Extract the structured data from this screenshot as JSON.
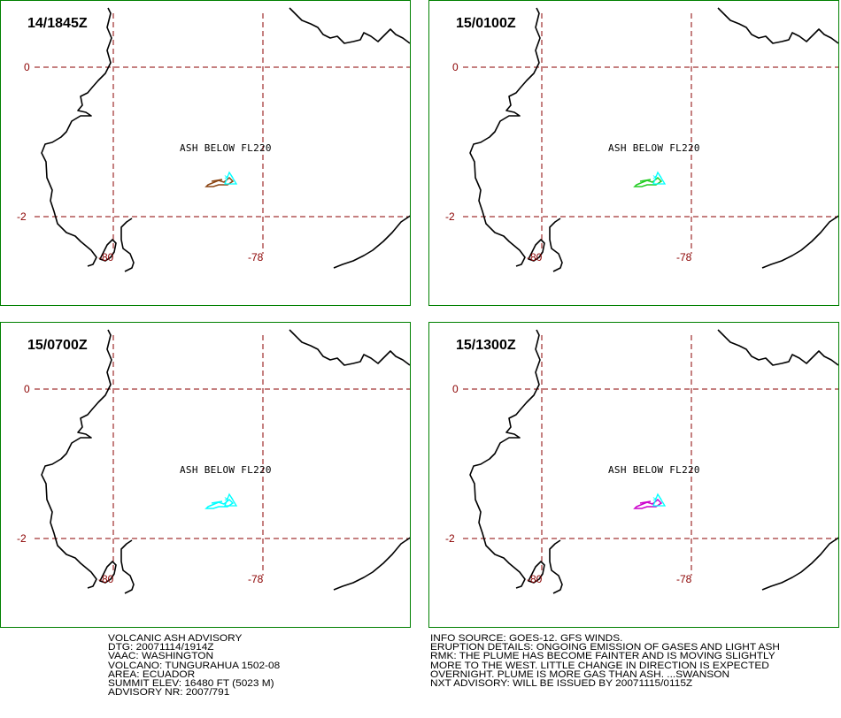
{
  "panels": [
    {
      "time": "14/1845Z",
      "plume_color": "#8b4513",
      "vent_color": "#00ffff"
    },
    {
      "time": "15/0100Z",
      "plume_color": "#22cc22",
      "vent_color": "#00ffff"
    },
    {
      "time": "15/0700Z",
      "plume_color": "#00ffff",
      "vent_color": "#00ffff"
    },
    {
      "time": "15/1300Z",
      "plume_color": "#cc00cc",
      "vent_color": "#00ffff"
    }
  ],
  "map_labels": {
    "lat_0": "0",
    "lat_minus2": "-2",
    "lon_80": "-80",
    "lon_78": "-78",
    "ash_note": "ASH BELOW FL220"
  },
  "colors": {
    "frame": "#008000",
    "gridline": "#8b0000",
    "coastline": "#000000"
  },
  "advisory_left": [
    "VOLCANIC ASH ADVISORY",
    "DTG: 20071114/1914Z",
    "VAAC: WASHINGTON",
    "VOLCANO: TUNGURAHUA 1502-08",
    "AREA: ECUADOR",
    "SUMMIT ELEV: 16480 FT (5023 M)",
    "ADVISORY NR: 2007/791"
  ],
  "advisory_right": [
    "INFO SOURCE: GOES-12. GFS WINDS.",
    "ERUPTION DETAILS: ONGOING EMISSION OF GASES AND LIGHT ASH",
    "RMK: THE PLUME HAS BECOME FAINTER AND IS MOVING SLIGHTLY",
    "MORE TO THE WEST. LITTLE CHANGE IN DIRECTION IS EXPECTED",
    "OVERNIGHT. PLUME IS MORE GAS THAN ASH. ...SWANSON",
    "NXT ADVISORY: WILL BE ISSUED BY 20071115/0115Z"
  ]
}
